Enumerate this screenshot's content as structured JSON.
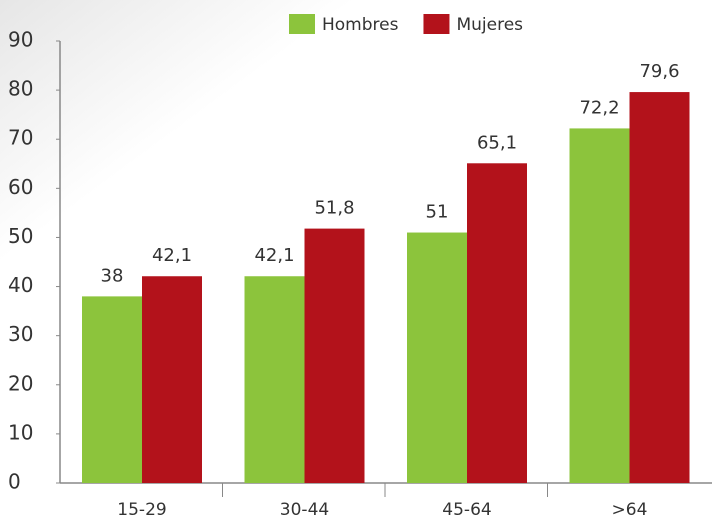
{
  "chart_data": {
    "type": "bar",
    "categories": [
      "15-29",
      "30-44",
      "45-64",
      ">64"
    ],
    "series": [
      {
        "name": "Hombres",
        "color": "#8cc43c",
        "values": [
          38,
          42.1,
          51,
          72.2
        ],
        "value_labels": [
          "38",
          "42,1",
          "51",
          "72,2"
        ]
      },
      {
        "name": "Mujeres",
        "color": "#b3121b",
        "values": [
          42.1,
          51.8,
          65.1,
          79.6
        ],
        "value_labels": [
          "42,1",
          "51,8",
          "65,1",
          "79,6"
        ]
      }
    ],
    "ylim": [
      0,
      90
    ],
    "yticks": [
      0,
      10,
      20,
      30,
      40,
      50,
      60,
      70,
      80,
      90
    ],
    "grid": false,
    "legend": "top"
  }
}
